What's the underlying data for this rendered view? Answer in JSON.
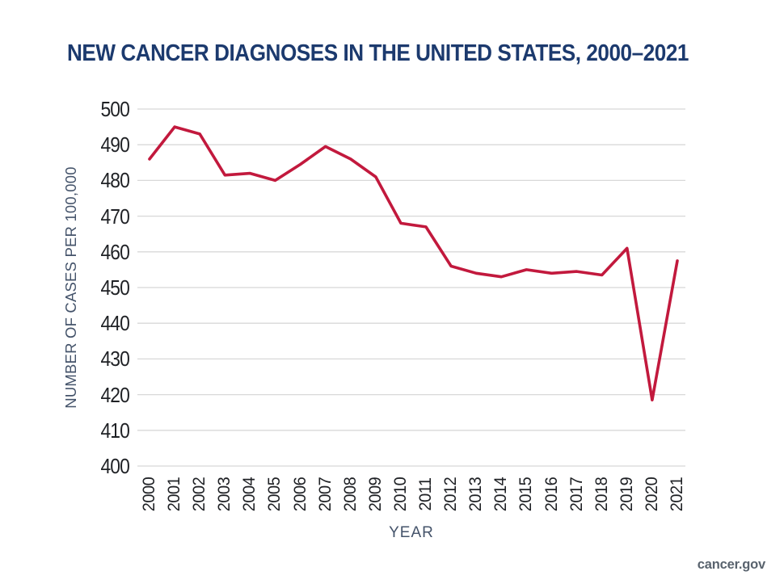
{
  "page": {
    "background": "#ffffff",
    "source_label": "cancer.gov"
  },
  "colors": {
    "title": "#1c3a6e",
    "axis_title": "#44536a",
    "tick_label": "#1f2125",
    "gridline": "#d8d8d8",
    "line": "#c2193d",
    "footer": "#59636e"
  },
  "chart_data": {
    "type": "line",
    "title": "NEW CANCER DIAGNOSES IN THE UNITED STATES, 2000–2021",
    "xlabel": "YEAR",
    "ylabel": "NUMBER OF CASES PER 100,000",
    "categories": [
      "2000",
      "2001",
      "2002",
      "2003",
      "2004",
      "2005",
      "2006",
      "2007",
      "2008",
      "2009",
      "2010",
      "2011",
      "2012",
      "2013",
      "2014",
      "2015",
      "2016",
      "2017",
      "2018",
      "2019",
      "2020",
      "2021"
    ],
    "values": [
      486,
      495,
      493,
      481.5,
      482,
      480,
      484.5,
      489.5,
      486,
      481,
      468,
      467,
      456,
      454,
      453,
      455,
      454,
      454.5,
      453.5,
      461,
      418.5,
      457.5
    ],
    "ylim": [
      400,
      500
    ],
    "yticks": [
      400,
      410,
      420,
      430,
      440,
      450,
      460,
      470,
      480,
      490,
      500
    ],
    "grid": "horizontal",
    "legend": "none",
    "line_width": 3.6
  }
}
